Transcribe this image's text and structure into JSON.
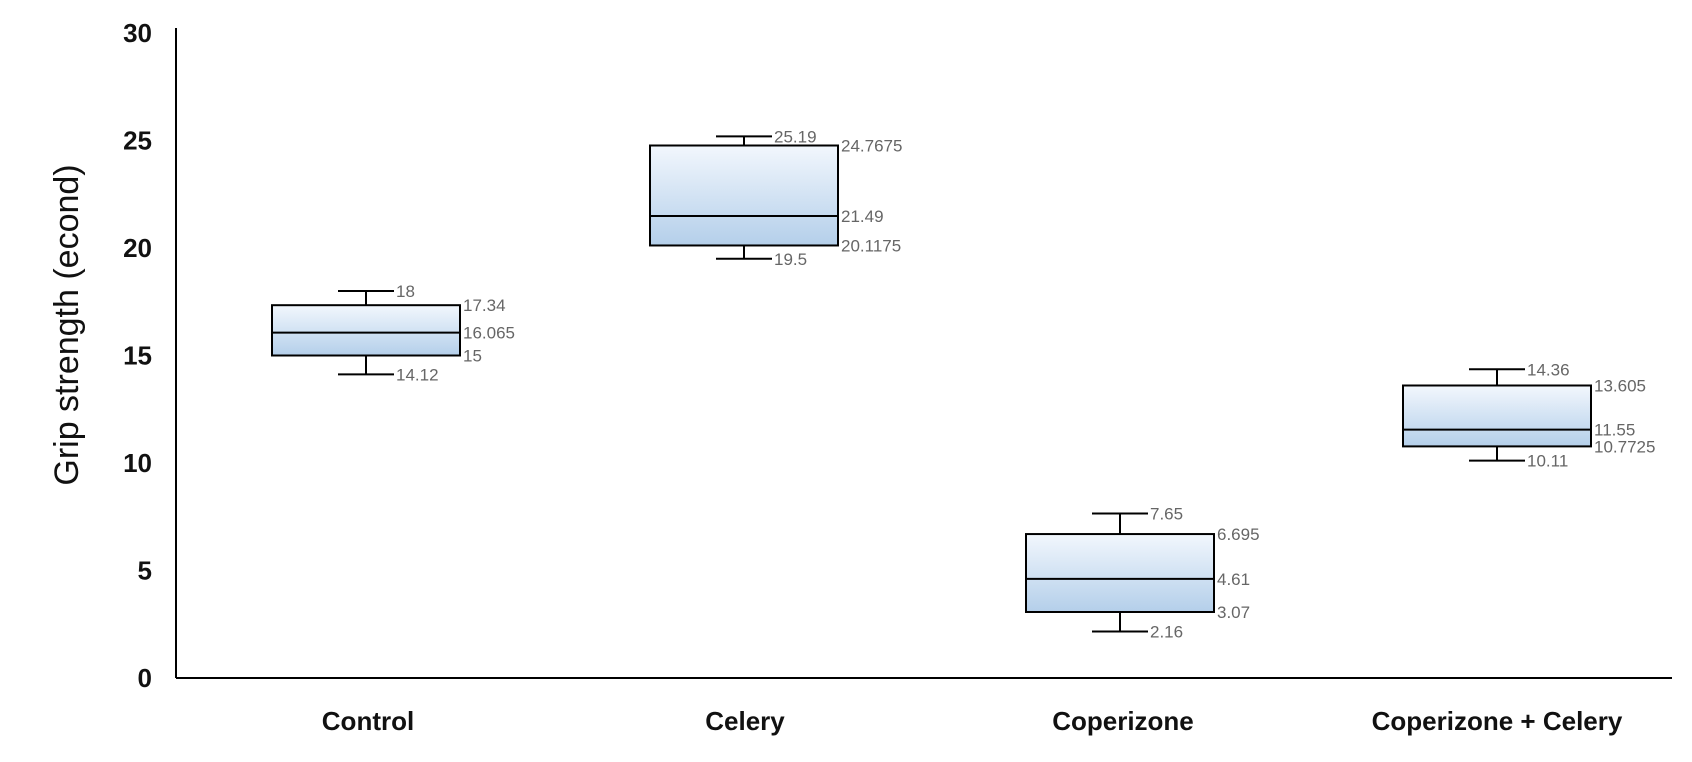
{
  "chart_data": {
    "type": "box",
    "title": "",
    "xlabel": "",
    "ylabel": "Grip strength (econd)",
    "ylim": [
      0,
      30
    ],
    "yticks": [
      "0",
      "5",
      "10",
      "15",
      "20",
      "25",
      "30"
    ],
    "grid": false,
    "legend": "none",
    "colors": {
      "box_fill_top": "#f2f7fd",
      "box_fill_bottom": "#b4cfea",
      "stroke": "#000000",
      "value_label": "#666666"
    },
    "categories": [
      "Control",
      "Celery",
      "Coperizone",
      "Coperizone + Celery"
    ],
    "boxes": [
      {
        "category": "Control",
        "max": 18,
        "q3": 17.34,
        "median": 16.065,
        "q1": 15,
        "min": 14.12,
        "labels": {
          "max": "18",
          "q3": "17.34",
          "median": "16.065",
          "q1": "15",
          "min": "14.12"
        }
      },
      {
        "category": "Celery",
        "max": 25.19,
        "q3": 24.7675,
        "median": 21.49,
        "q1": 20.1175,
        "min": 19.5,
        "labels": {
          "max": "25.19",
          "q3": "24.7675",
          "median": "21.49",
          "q1": "20.1175",
          "min": "19.5"
        }
      },
      {
        "category": "Coperizone",
        "max": 7.65,
        "q3": 6.695,
        "median": 4.61,
        "q1": 3.07,
        "min": 2.16,
        "labels": {
          "max": "7.65",
          "q3": "6.695",
          "median": "4.61",
          "q1": "3.07",
          "min": "2.16"
        }
      },
      {
        "category": "Coperizone + Celery",
        "max": 14.36,
        "q3": 13.605,
        "median": 11.55,
        "q1": 10.7725,
        "min": 10.11,
        "labels": {
          "max": "14.36",
          "q3": "13.605",
          "median": "11.55",
          "q1": "10.7725",
          "min": "10.11"
        }
      }
    ]
  }
}
